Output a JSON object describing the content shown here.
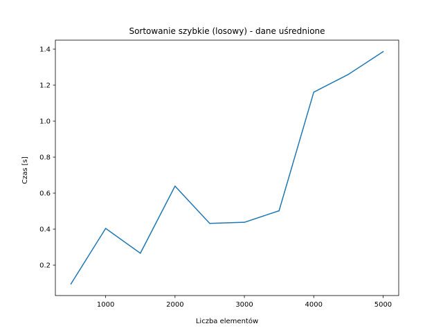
{
  "chart_data": {
    "type": "line",
    "title": "Sortowanie szybkie (losowy) - dane uśrednione",
    "xlabel": "Liczba elementów",
    "ylabel": "Czas [s]",
    "x": [
      500,
      1000,
      1500,
      2000,
      2500,
      3000,
      3500,
      4000,
      4500,
      5000
    ],
    "series": [
      {
        "values": [
          0.096,
          0.404,
          0.266,
          0.639,
          0.432,
          0.438,
          0.502,
          1.161,
          1.26,
          1.386
        ],
        "color": "#1f77b4"
      }
    ],
    "xlim": [
      275,
      5225
    ],
    "ylim": [
      0.031,
      1.45
    ],
    "xticks": [
      1000,
      2000,
      3000,
      4000,
      5000
    ],
    "yticks": [
      0.2,
      0.4,
      0.6,
      0.8,
      1.0,
      1.2,
      1.4
    ],
    "xtick_labels": [
      "1000",
      "2000",
      "3000",
      "4000",
      "5000"
    ],
    "ytick_labels": [
      "0.2",
      "0.4",
      "0.6",
      "0.8",
      "1.0",
      "1.2",
      "1.4"
    ],
    "grid": false,
    "legend": "none"
  }
}
